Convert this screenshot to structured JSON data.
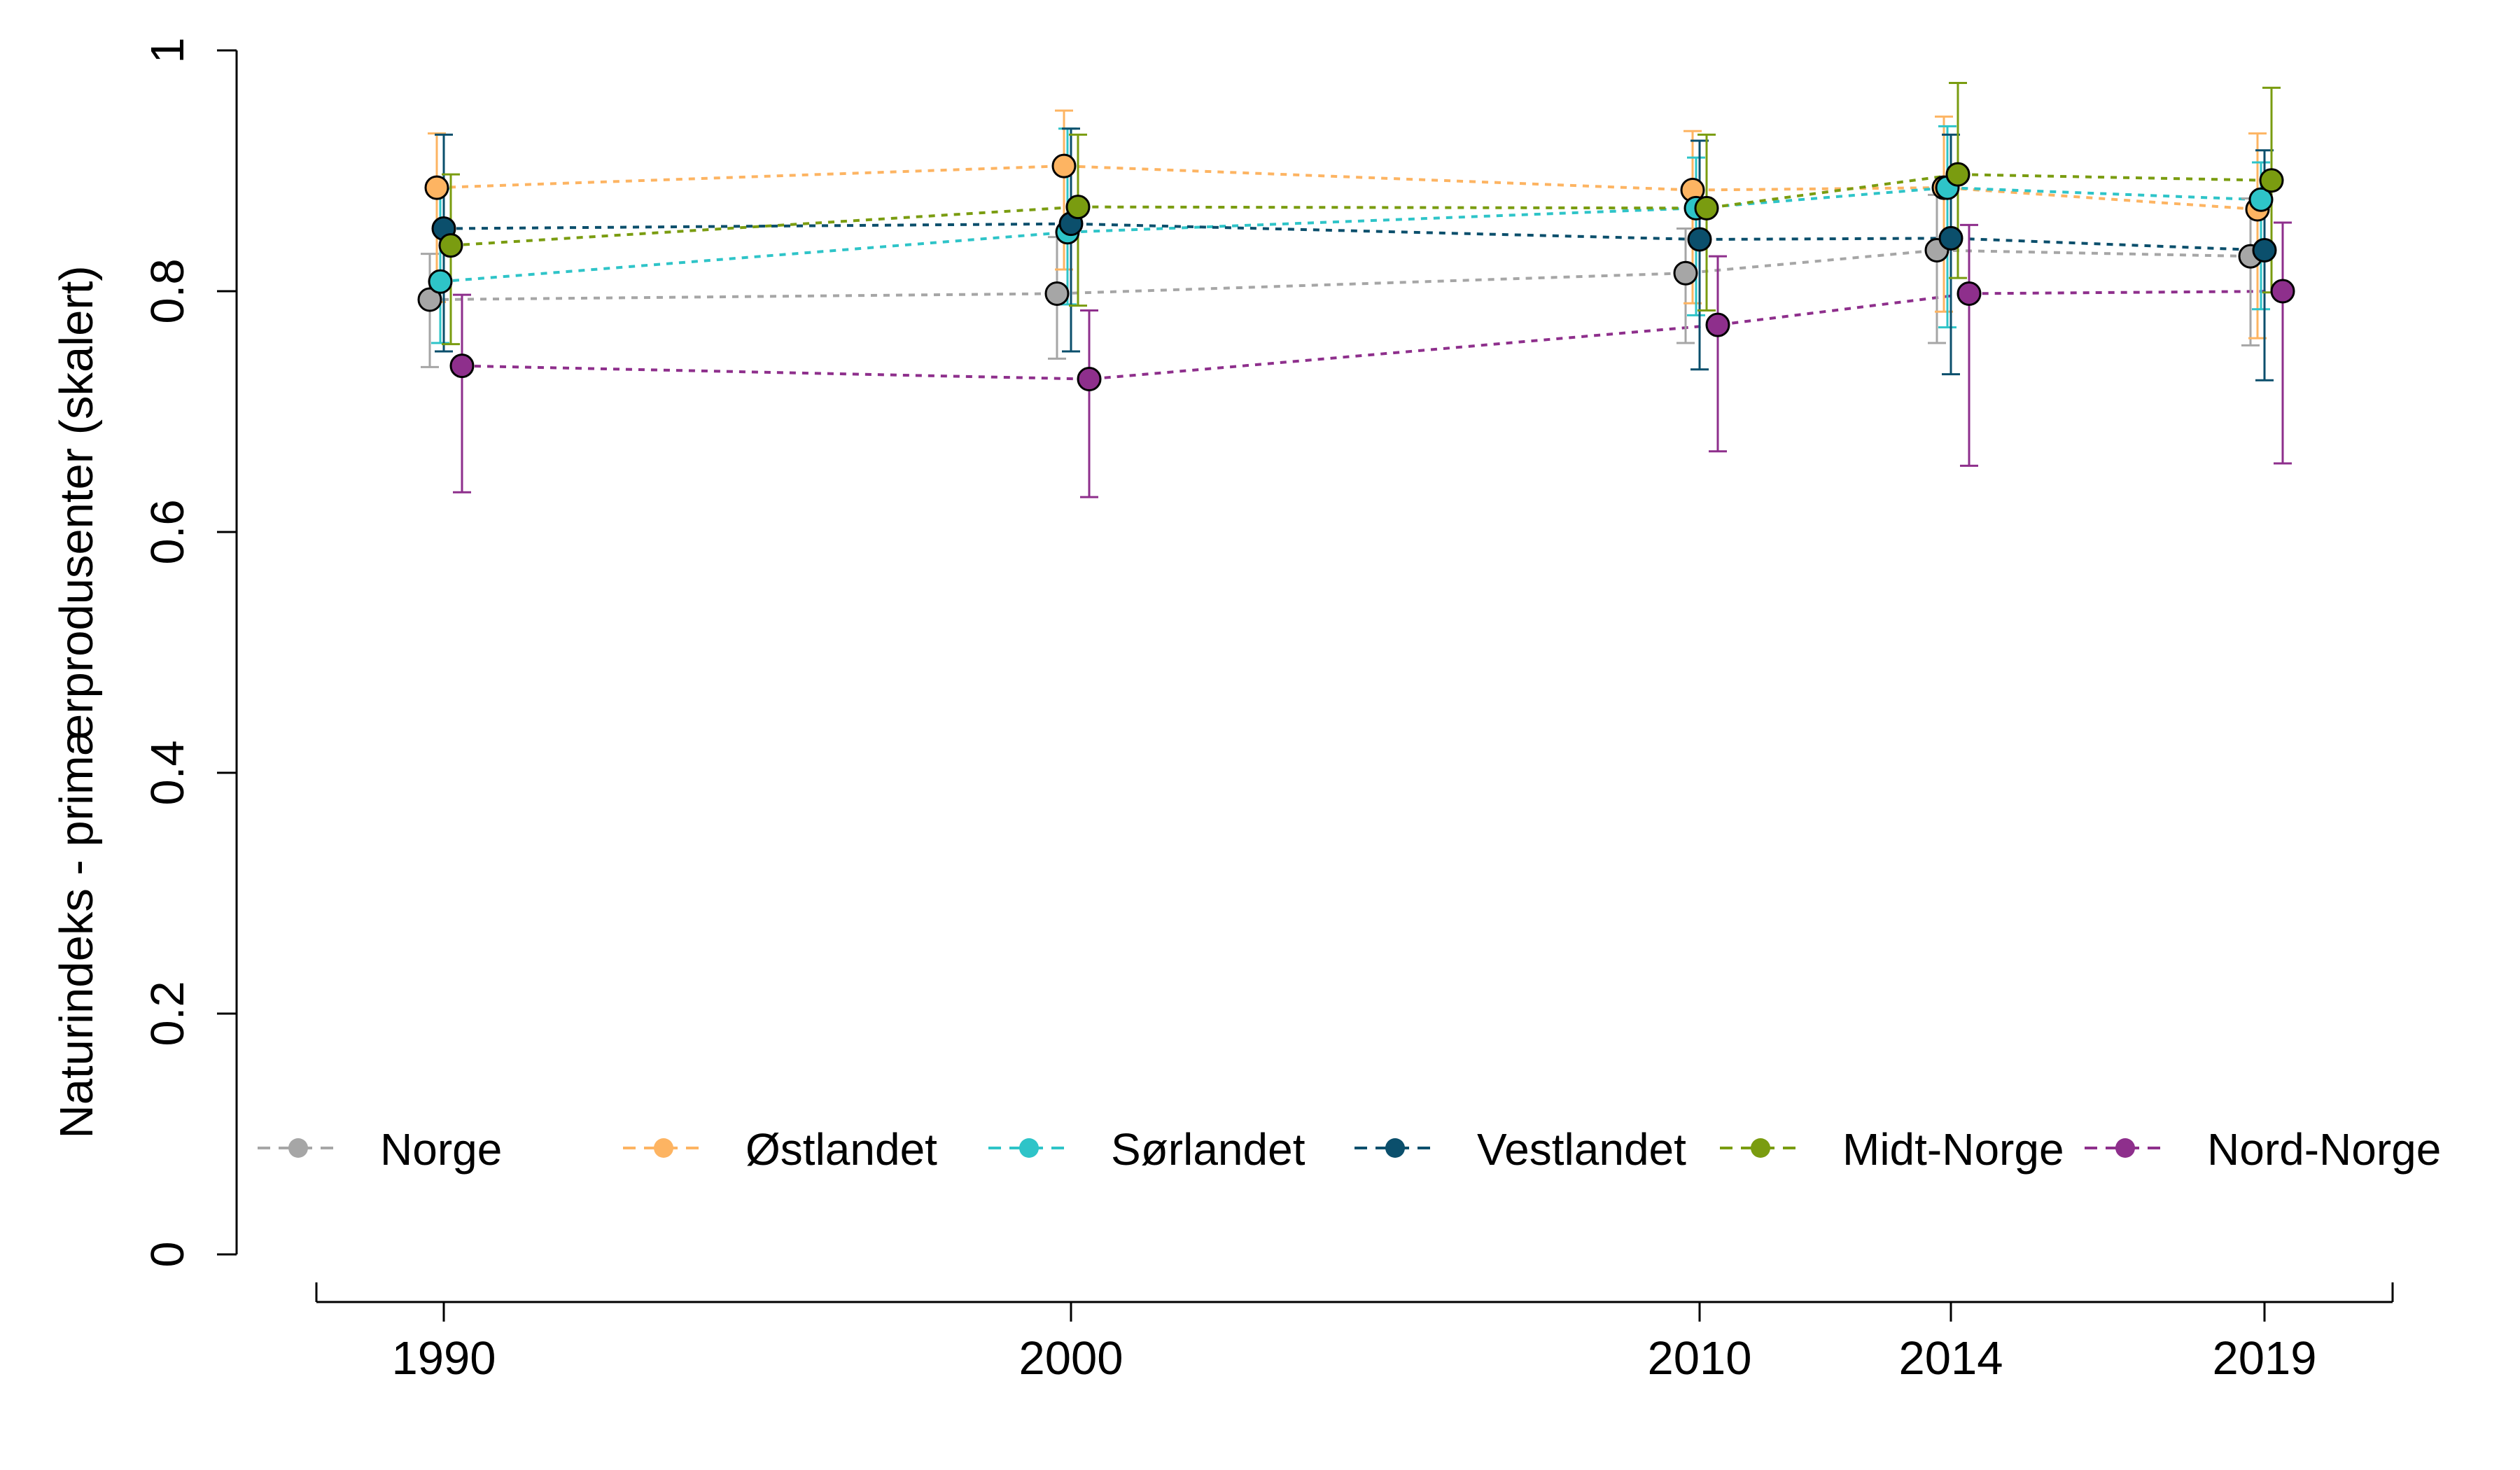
{
  "chart_data": {
    "type": "line",
    "title": "",
    "xlabel": "",
    "ylabel": "Naturindeks - primærprodusenter (skalert)",
    "x": [
      1990,
      2000,
      2010,
      2014,
      2019
    ],
    "xtick_labels": [
      "1990",
      "2000",
      "2010",
      "2014",
      "2019"
    ],
    "xlim": [
      1988,
      2021
    ],
    "ylim": [
      0,
      1
    ],
    "yticks": [
      0,
      0.2,
      0.4,
      0.6,
      0.8,
      1
    ],
    "ytick_labels": [
      "0",
      "0.2",
      "0.4",
      "0.6",
      "0.8",
      "1"
    ],
    "grid": false,
    "legend_position": "bottom",
    "series": [
      {
        "name": "Norge",
        "color": "#a6a6a6",
        "values": [
          0.793,
          0.798,
          0.815,
          0.834,
          0.829
        ],
        "lower": [
          0.737,
          0.744,
          0.757,
          0.757,
          0.755
        ],
        "upper": [
          0.831,
          0.845,
          0.852,
          0.88,
          0.877
        ]
      },
      {
        "name": "Østlandet",
        "color": "#fdb462",
        "values": [
          0.886,
          0.904,
          0.884,
          0.886,
          0.868
        ],
        "lower": [
          0.791,
          0.818,
          0.79,
          0.783,
          0.761
        ],
        "upper": [
          0.931,
          0.95,
          0.933,
          0.945,
          0.931
        ]
      },
      {
        "name": "Sørlandet",
        "color": "#2ec4c8",
        "values": [
          0.808,
          0.849,
          0.869,
          0.886,
          0.876
        ],
        "lower": [
          0.757,
          0.789,
          0.78,
          0.77,
          0.785
        ],
        "upper": [
          0.885,
          0.935,
          0.911,
          0.937,
          0.907
        ]
      },
      {
        "name": "Vestlandet",
        "color": "#0b4f6c",
        "values": [
          0.852,
          0.856,
          0.843,
          0.844,
          0.834
        ],
        "lower": [
          0.75,
          0.75,
          0.735,
          0.731,
          0.726
        ],
        "upper": [
          0.93,
          0.935,
          0.925,
          0.93,
          0.917
        ]
      },
      {
        "name": "Midt-Norge",
        "color": "#7a9c10",
        "values": [
          0.838,
          0.87,
          0.869,
          0.897,
          0.892
        ],
        "lower": [
          0.756,
          0.788,
          0.784,
          0.811,
          0.799
        ],
        "upper": [
          0.897,
          0.93,
          0.93,
          0.973,
          0.969
        ]
      },
      {
        "name": "Nord-Norge",
        "color": "#8e2f8c",
        "values": [
          0.738,
          0.727,
          0.772,
          0.798,
          0.8
        ],
        "lower": [
          0.633,
          0.629,
          0.667,
          0.655,
          0.657
        ],
        "upper": [
          0.797,
          0.784,
          0.829,
          0.855,
          0.857
        ]
      }
    ]
  }
}
